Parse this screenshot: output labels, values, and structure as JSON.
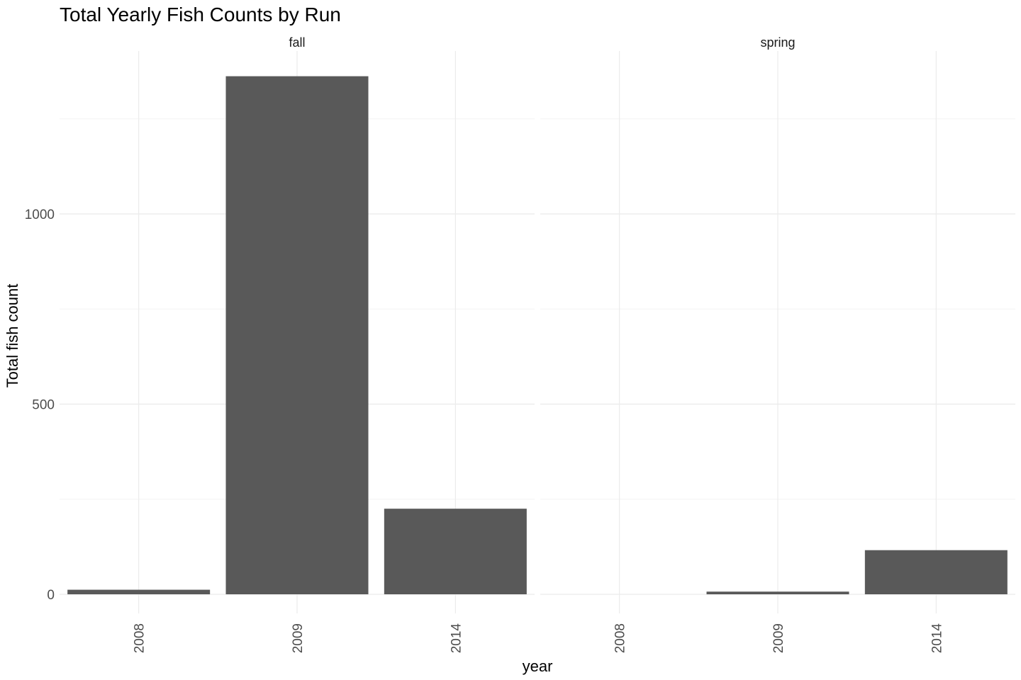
{
  "chart_data": {
    "type": "bar",
    "title": "Total Yearly Fish Counts by Run",
    "xlabel": "year",
    "ylabel": "Total fish count",
    "ylim": [
      0,
      1370
    ],
    "y_ticks": [
      0,
      500,
      1000
    ],
    "y_tick_labels": [
      "0",
      "500",
      "1000"
    ],
    "grid": true,
    "facets": [
      {
        "label": "fall",
        "categories": [
          "2008",
          "2009",
          "2014"
        ],
        "values": [
          12,
          1362,
          225
        ]
      },
      {
        "label": "spring",
        "categories": [
          "2008",
          "2009",
          "2014"
        ],
        "values": [
          0,
          7,
          116
        ]
      }
    ],
    "colors": {
      "bar": "#595959",
      "grid_major": "#ebebeb",
      "grid_minor": "#f4f4f4",
      "text": "#000000",
      "tick_text": "#4d4d4d"
    }
  }
}
